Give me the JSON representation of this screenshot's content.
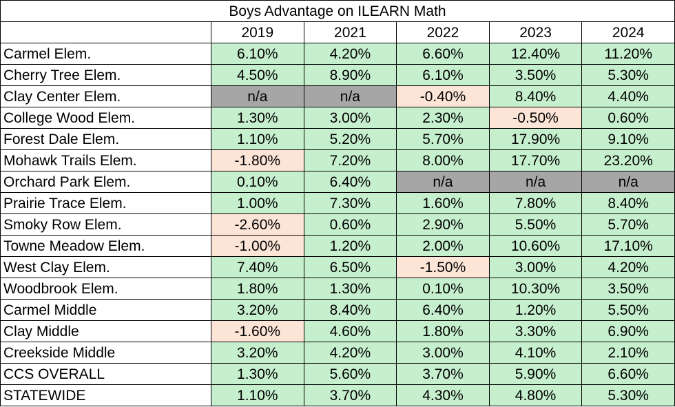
{
  "chart_data": {
    "type": "table",
    "title": "Boys Advantage on ILEARN Math",
    "columns": [
      "2019",
      "2021",
      "2022",
      "2023",
      "2024"
    ],
    "rows": [
      {
        "label": "Carmel Elem.",
        "values": [
          "6.10%",
          "4.20%",
          "6.60%",
          "12.40%",
          "11.20%"
        ]
      },
      {
        "label": "Cherry Tree Elem.",
        "values": [
          "4.50%",
          "8.90%",
          "6.10%",
          "3.50%",
          "5.30%"
        ]
      },
      {
        "label": "Clay Center Elem.",
        "values": [
          "n/a",
          "n/a",
          "-0.40%",
          "8.40%",
          "4.40%"
        ]
      },
      {
        "label": "College Wood Elem.",
        "values": [
          "1.30%",
          "3.00%",
          "2.30%",
          "-0.50%",
          "0.60%"
        ]
      },
      {
        "label": "Forest Dale Elem.",
        "values": [
          "1.10%",
          "5.20%",
          "5.70%",
          "17.90%",
          "9.10%"
        ]
      },
      {
        "label": "Mohawk Trails Elem.",
        "values": [
          "-1.80%",
          "7.20%",
          "8.00%",
          "17.70%",
          "23.20%"
        ]
      },
      {
        "label": "Orchard Park Elem.",
        "values": [
          "0.10%",
          "6.40%",
          "n/a",
          "n/a",
          "n/a"
        ]
      },
      {
        "label": "Prairie Trace Elem.",
        "values": [
          "1.00%",
          "7.30%",
          "1.60%",
          "7.80%",
          "8.40%"
        ]
      },
      {
        "label": "Smoky Row Elem.",
        "values": [
          "-2.60%",
          "0.60%",
          "2.90%",
          "5.50%",
          "5.70%"
        ]
      },
      {
        "label": "Towne Meadow Elem.",
        "values": [
          "-1.00%",
          "1.20%",
          "2.00%",
          "10.60%",
          "17.10%"
        ]
      },
      {
        "label": "West Clay Elem.",
        "values": [
          "7.40%",
          "6.50%",
          "-1.50%",
          "3.00%",
          "4.20%"
        ]
      },
      {
        "label": "Woodbrook Elem.",
        "values": [
          "1.80%",
          "1.30%",
          "0.10%",
          "10.30%",
          "3.50%"
        ]
      },
      {
        "label": "Carmel Middle",
        "values": [
          "3.20%",
          "8.40%",
          "6.40%",
          "1.20%",
          "5.50%"
        ]
      },
      {
        "label": "Clay Middle",
        "values": [
          "-1.60%",
          "4.60%",
          "1.80%",
          "3.30%",
          "6.90%"
        ]
      },
      {
        "label": "Creekside Middle",
        "values": [
          "3.20%",
          "4.20%",
          "3.00%",
          "4.10%",
          "2.10%"
        ]
      },
      {
        "label": "CCS OVERALL",
        "values": [
          "1.30%",
          "5.60%",
          "3.70%",
          "5.90%",
          "6.60%"
        ]
      },
      {
        "label": "STATEWIDE",
        "values": [
          "1.10%",
          "3.70%",
          "4.30%",
          "4.80%",
          "5.30%"
        ]
      }
    ],
    "colors": {
      "positive_fill": "#C6EFCE",
      "negative_fill": "#FCE4D6",
      "na_fill": "#A6A6A6"
    }
  }
}
